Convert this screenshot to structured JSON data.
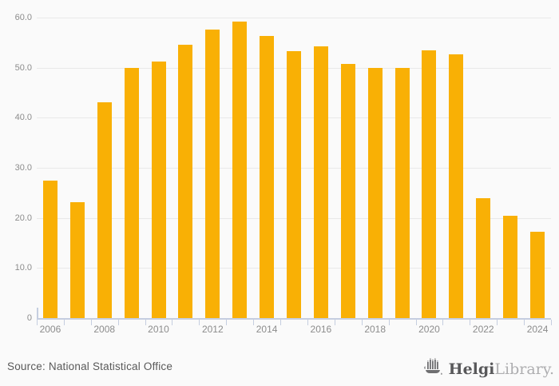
{
  "chart_data": {
    "type": "bar",
    "title": "",
    "xlabel": "",
    "ylabel": "",
    "categories": [
      "2006",
      "2007",
      "2008",
      "2009",
      "2010",
      "2011",
      "2012",
      "2013",
      "2014",
      "2015",
      "2016",
      "2017",
      "2018",
      "2019",
      "2020",
      "2021",
      "2022",
      "2023",
      "2024"
    ],
    "values": [
      27.5,
      23.2,
      43.1,
      49.9,
      51.2,
      54.5,
      57.6,
      59.2,
      56.4,
      53.3,
      54.2,
      50.7,
      49.9,
      50.0,
      53.5,
      52.7,
      24.0,
      20.5,
      17.3
    ],
    "ylim": [
      0,
      60
    ],
    "yticks": [
      0,
      10,
      20,
      30,
      40,
      50,
      60
    ],
    "ytick_labels": [
      "0",
      "10.0",
      "20.0",
      "30.0",
      "40.0",
      "50.0",
      "60.0"
    ],
    "xtick_label_every": 2,
    "xtick_labels_shown": [
      "2006",
      "2008",
      "2010",
      "2012",
      "2014",
      "2016",
      "2018",
      "2020",
      "2022",
      "2024"
    ],
    "grid": true,
    "legend_position": "none",
    "bar_color": "#f9b005"
  },
  "colors": {
    "background": "#fafafa",
    "gridline": "#e9e9e9",
    "axis": "#c5cee0",
    "tick_label": "#8c8c8c",
    "source_text": "#595959",
    "logo_dark": "#58585a",
    "logo_light": "#aeaeb0",
    "bar": "#f9b005"
  },
  "footer": {
    "source": "Source: National Statistical Office",
    "logo": {
      "brand_bold": "Helgi",
      "brand_light": "Library.",
      "icon": "castle-boat-icon"
    }
  }
}
